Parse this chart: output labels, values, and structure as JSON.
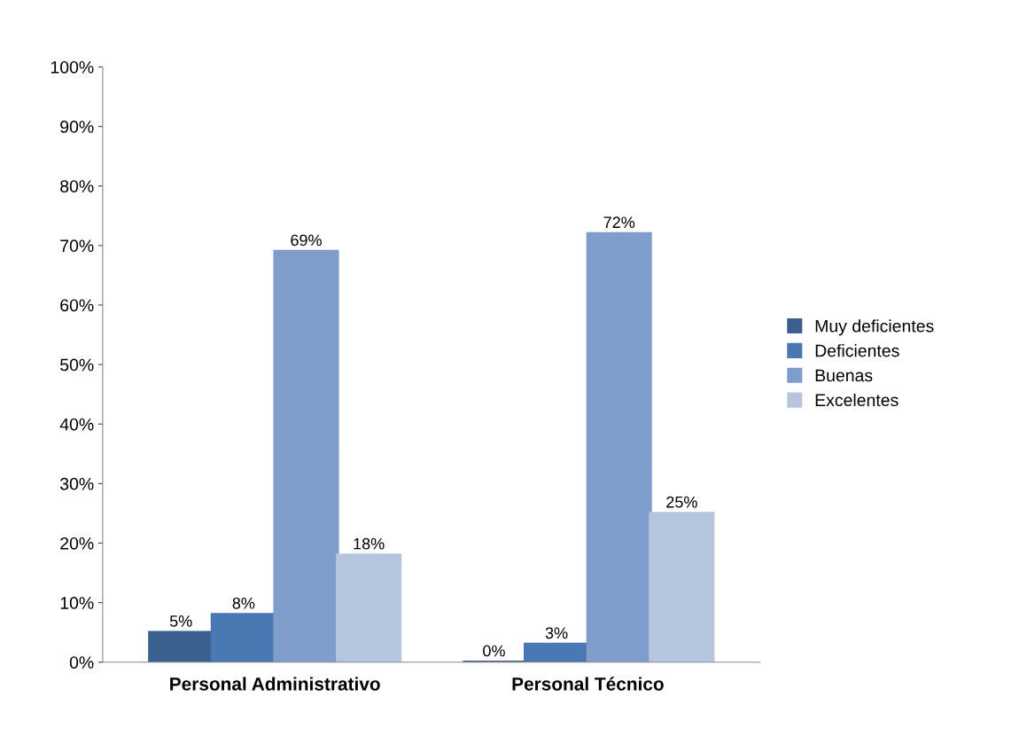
{
  "chart_data": {
    "type": "bar",
    "categories": [
      "Personal Administrativo",
      "Personal Técnico"
    ],
    "series": [
      {
        "name": "Muy deficientes",
        "color": "#3b5f8f",
        "values": [
          5,
          0
        ],
        "value_labels": [
          "5%",
          "0%"
        ]
      },
      {
        "name": "Deficientes",
        "color": "#4a78b4",
        "values": [
          8,
          3
        ],
        "value_labels": [
          "8%",
          "3%"
        ]
      },
      {
        "name": "Buenas",
        "color": "#7f9dcb",
        "values": [
          69,
          72
        ],
        "value_labels": [
          "69%",
          "72%"
        ]
      },
      {
        "name": "Excelentes",
        "color": "#b7c4de",
        "values": [
          18,
          25
        ],
        "value_labels": [
          "18%",
          "25%"
        ]
      }
    ],
    "ylim": [
      0,
      100
    ],
    "yticks": [
      {
        "value": 0,
        "label": "0%"
      },
      {
        "value": 10,
        "label": "10%"
      },
      {
        "value": 20,
        "label": "20%"
      },
      {
        "value": 30,
        "label": "30%"
      },
      {
        "value": 40,
        "label": "40%"
      },
      {
        "value": 50,
        "label": "50%"
      },
      {
        "value": 60,
        "label": "60%"
      },
      {
        "value": 70,
        "label": "70%"
      },
      {
        "value": 80,
        "label": "80%"
      },
      {
        "value": 90,
        "label": "90%"
      },
      {
        "value": 100,
        "label": "100%"
      }
    ],
    "grid": false,
    "legend": "right"
  }
}
